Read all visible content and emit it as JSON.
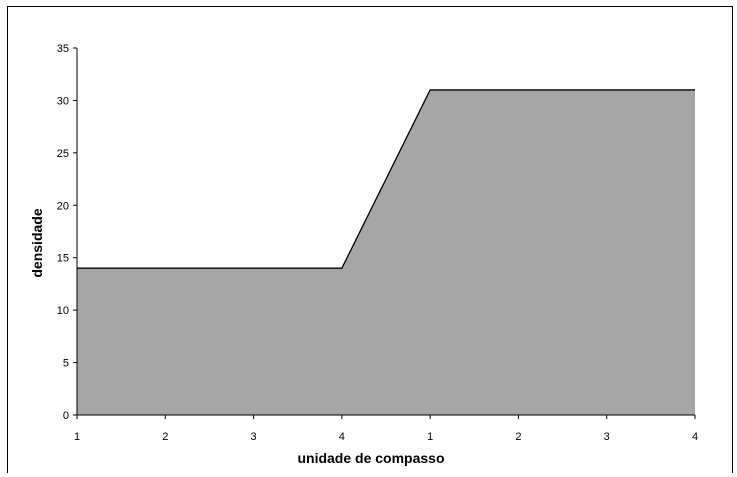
{
  "chart_data": {
    "type": "area",
    "title": "",
    "xlabel": "unidade de compasso",
    "ylabel": "densidade",
    "categories": [
      "1",
      "2",
      "3",
      "4",
      "1",
      "2",
      "3",
      "4"
    ],
    "values": [
      14,
      14,
      14,
      14,
      31,
      31,
      31,
      31
    ],
    "ylim": [
      0,
      35
    ],
    "yticks": [
      "0",
      "5",
      "10",
      "15",
      "20",
      "25",
      "30",
      "35"
    ],
    "grid": false,
    "legend": "none",
    "fill_color": "#a6a6a6",
    "line_color": "#000000"
  }
}
